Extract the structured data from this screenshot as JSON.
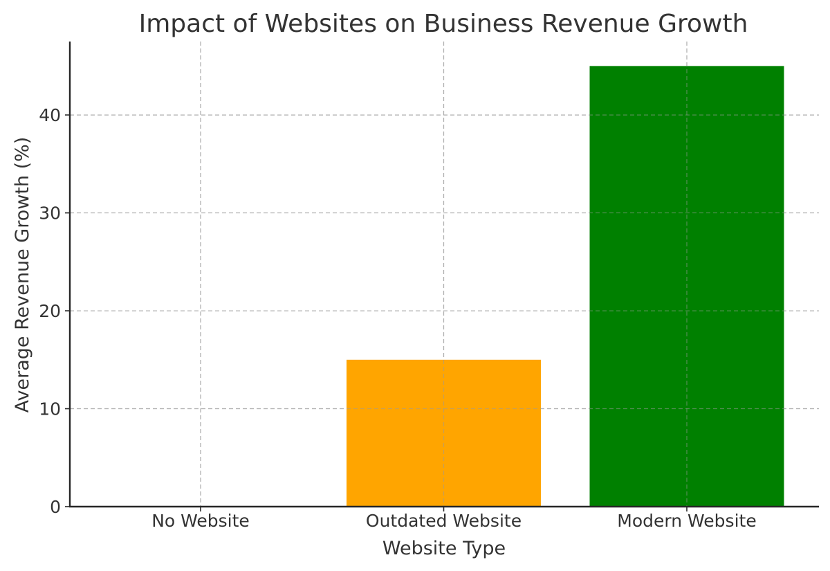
{
  "chart_data": {
    "type": "bar",
    "title": "Impact of Websites on Business Revenue Growth",
    "xlabel": "Website Type",
    "ylabel": "Average Revenue Growth (%)",
    "categories": [
      "No Website",
      "Outdated Website",
      "Modern Website"
    ],
    "values": [
      0,
      15,
      45
    ],
    "colors": [
      "#1f77b4",
      "#ffa500",
      "#008000"
    ],
    "ylim": [
      0,
      47.5
    ],
    "yticks": [
      0,
      10,
      20,
      30,
      40
    ],
    "grid": true,
    "legend": "none"
  }
}
